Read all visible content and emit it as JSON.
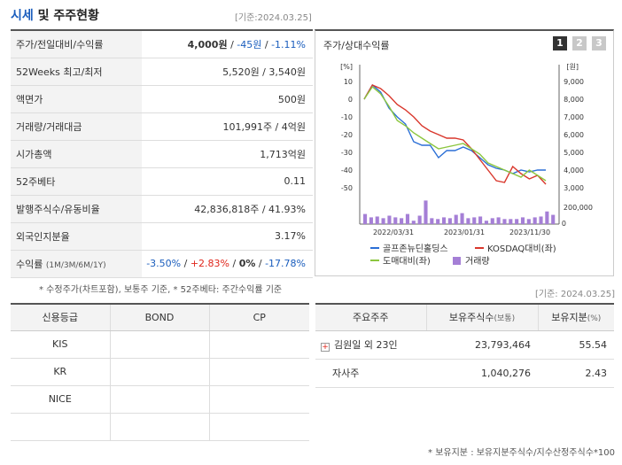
{
  "header": {
    "title_accent": "시세",
    "title_rest": " 및 주주현황",
    "date": "[기준:2024.03.25]"
  },
  "market": {
    "rows": [
      {
        "label": "주가/전일대비/수익률",
        "price": "4,000원",
        "sep1": " / ",
        "change": "-45원",
        "sep2": " / ",
        "rate": "-1.11%"
      },
      {
        "label": "52Weeks 최고/최저",
        "value": "5,520원 / 3,540원"
      },
      {
        "label": "액면가",
        "value": "500원"
      },
      {
        "label": "거래량/거래대금",
        "value": "101,991주 / 4억원"
      },
      {
        "label": "시가총액",
        "value": "1,713억원"
      },
      {
        "label": "52주베타",
        "value": "0.11"
      },
      {
        "label": "발행주식수/유동비율",
        "value": "42,836,818주 / 41.93%"
      },
      {
        "label": "외국인지분율",
        "value": "3.17%"
      },
      {
        "label": "수익률",
        "label_sub": "(1M/3M/6M/1Y)",
        "r1": "-3.50%",
        "r2": "+2.83%",
        "r3": "0%",
        "r4": "-17.78%",
        "sep": "/ "
      }
    ],
    "note": "* 수정주가(차트포함), 보통주 기준, * 52주베타: 주간수익률 기준"
  },
  "chart": {
    "title": "주가/상대수익률",
    "buttons": [
      "1",
      "2",
      "3"
    ],
    "active_button": 0,
    "colors": {
      "stock": "#2b6fd6",
      "kosdaq": "#d9372c",
      "wholesale": "#8cc63f",
      "volume": "#a57fd6"
    },
    "chart_data": {
      "type": "line",
      "left_axis_unit": "[%]",
      "right_axis_unit": "[원]",
      "left_ticks": [
        "10",
        "0",
        "-10",
        "-20",
        "-30",
        "-40",
        "-50"
      ],
      "right_ticks": [
        "9,000",
        "8,000",
        "7,000",
        "6,000",
        "5,000",
        "4,000",
        "3,000"
      ],
      "volume_ticks": [
        "200,000",
        "0"
      ],
      "x_labels": [
        "2022/03/31",
        "2023/01/31",
        "2023/11/30"
      ],
      "ylim_left": [
        -50,
        10
      ],
      "series": [
        {
          "name": "골프존뉴딘홀딩스",
          "values": [
            0,
            8,
            4,
            -5,
            -10,
            -14,
            -24,
            -26,
            -26,
            -33,
            -29,
            -29,
            -27,
            -29,
            -33,
            -37,
            -39,
            -40,
            -42,
            -40,
            -41,
            -40,
            -40
          ]
        },
        {
          "name": "KOSDAQ대비(좌)",
          "values": [
            0,
            8,
            6,
            2,
            -3,
            -6,
            -10,
            -15,
            -18,
            -20,
            -22,
            -22,
            -23,
            -28,
            -34,
            -40,
            -46,
            -47,
            -38,
            -42,
            -45,
            -43,
            -48
          ]
        },
        {
          "name": "도매대비(좌)",
          "values": [
            0,
            7,
            3,
            -4,
            -12,
            -15,
            -19,
            -22,
            -25,
            -28,
            -27,
            -26,
            -25,
            -28,
            -31,
            -36,
            -38,
            -40,
            -42,
            -44,
            -40,
            -43,
            -46
          ]
        }
      ],
      "volume_values": [
        60,
        40,
        45,
        35,
        50,
        40,
        35,
        60,
        20,
        50,
        140,
        35,
        30,
        40,
        35,
        55,
        65,
        35,
        40,
        45,
        20,
        35,
        40,
        30,
        30,
        30,
        40,
        30,
        40,
        45,
        75,
        55
      ],
      "ylim_volume": [
        0,
        200
      ],
      "legend": [
        {
          "label": "골프존뉴딘홀딩스",
          "key": "stock"
        },
        {
          "label": "KOSDAQ대비(좌)",
          "key": "kosdaq"
        },
        {
          "label": "도매대비(좌)",
          "key": "wholesale"
        },
        {
          "label": "거래량",
          "key": "volume"
        }
      ]
    }
  },
  "credit": {
    "headers": [
      "신용등급",
      "BOND",
      "CP"
    ],
    "rows": [
      {
        "agency": "KIS",
        "bond": "",
        "cp": ""
      },
      {
        "agency": "KR",
        "bond": "",
        "cp": ""
      },
      {
        "agency": "NICE",
        "bond": "",
        "cp": ""
      },
      {
        "agency": "",
        "bond": "",
        "cp": ""
      }
    ]
  },
  "holders": {
    "date": "[기준: 2024.03.25]",
    "headers": {
      "name": "주요주주",
      "shares": "보유주식수",
      "shares_sub": "(보통)",
      "ratio": "보유지분",
      "ratio_sub": "(%)"
    },
    "rows": [
      {
        "name": "김원일 외 23인",
        "shares": "23,793,464",
        "ratio": "55.54",
        "expand": "+"
      },
      {
        "name": "자사주",
        "shares": "1,040,276",
        "ratio": "2.43"
      }
    ],
    "note": "* 보유지분 : 보유지분주식수/지수산정주식수*100"
  }
}
